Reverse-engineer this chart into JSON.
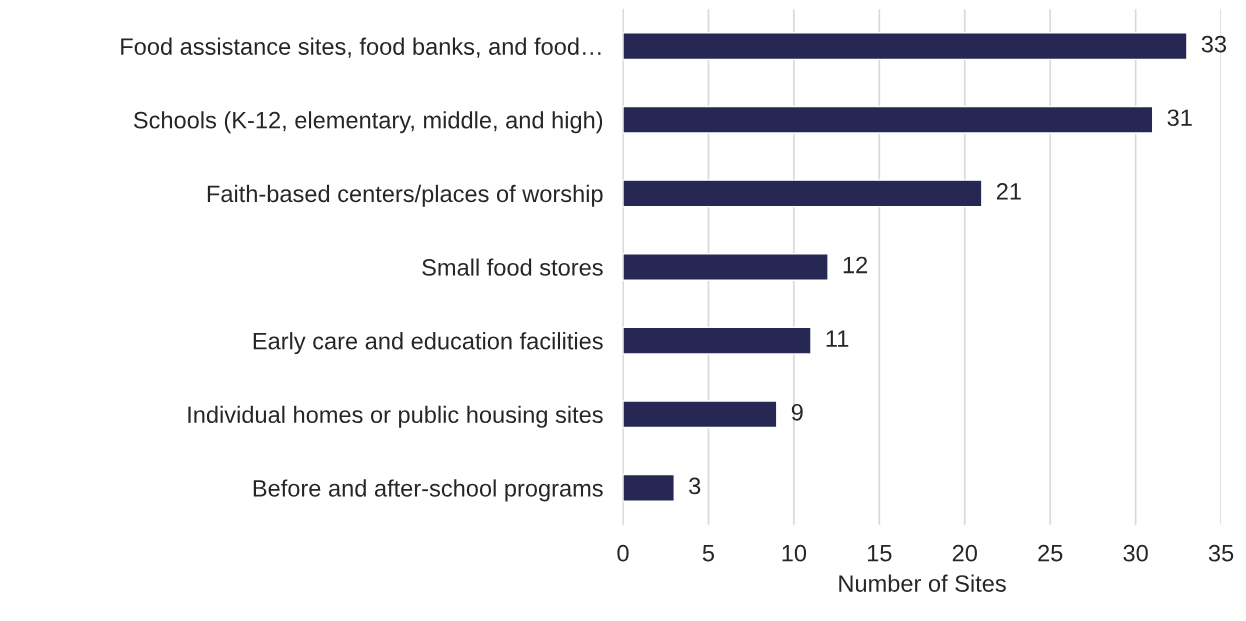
{
  "chart_data": {
    "type": "bar",
    "orientation": "horizontal",
    "xlabel": "Number of Sites",
    "categories": [
      "Food assistance sites, food banks, and food…",
      "Schools (K-12, elementary, middle, and high)",
      "Faith-based centers/places of worship",
      "Small food stores",
      "Early care and education facilities",
      "Individual homes or public housing sites",
      "Before and after-school programs"
    ],
    "values": [
      33,
      31,
      21,
      12,
      11,
      9,
      3
    ],
    "color": "#262752",
    "xlim": [
      0,
      35
    ],
    "xticks": [
      0,
      5,
      10,
      15,
      20,
      25,
      30,
      35
    ],
    "grid": "x",
    "data_labels": true,
    "legend": false
  }
}
